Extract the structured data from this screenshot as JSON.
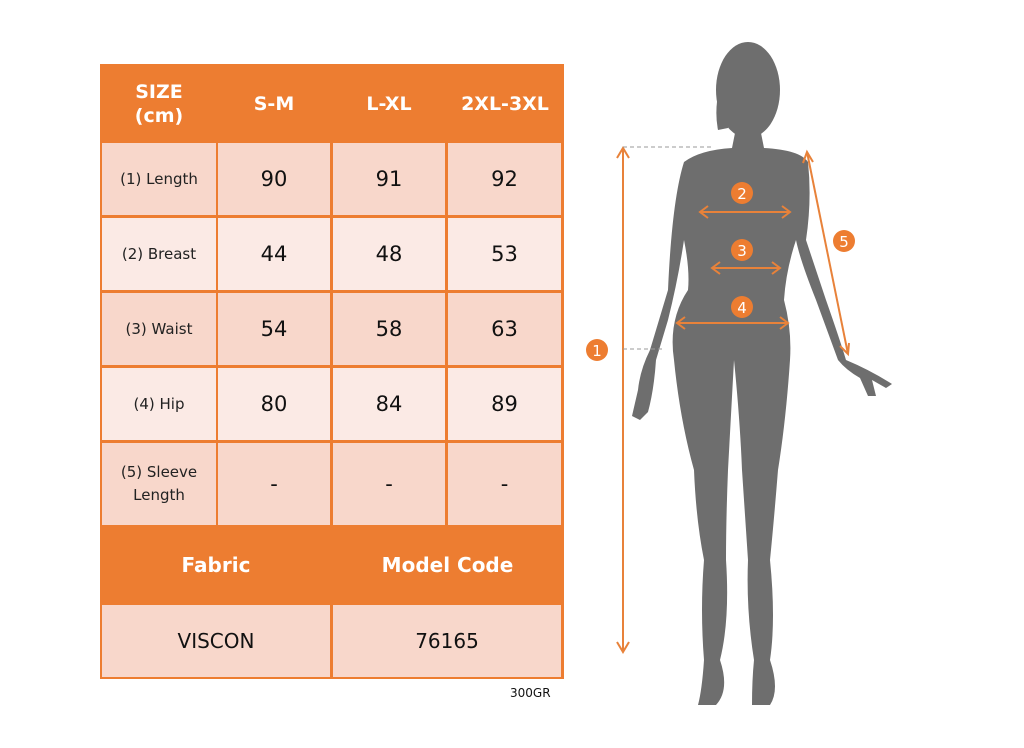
{
  "table": {
    "header": [
      "SIZE\n(cm)",
      "S-M",
      "L-XL",
      "2XL-3XL"
    ],
    "header_label_line1": "SIZE",
    "header_label_line2": "(cm)",
    "rows": [
      {
        "label": "(1) Length",
        "values": [
          "90",
          "91",
          "92"
        ]
      },
      {
        "label": "(2) Breast",
        "values": [
          "44",
          "48",
          "53"
        ]
      },
      {
        "label": "(3) Waist",
        "values": [
          "54",
          "58",
          "63"
        ]
      },
      {
        "label": "(4) Hip",
        "values": [
          "80",
          "84",
          "89"
        ]
      },
      {
        "label_line1": "(5) Sleeve",
        "label_line2": "Length",
        "values": [
          "-",
          "-",
          "-"
        ]
      }
    ],
    "footer_headers": [
      "Fabric",
      "Model Code"
    ],
    "footer_values": [
      "VISCON",
      "76165"
    ]
  },
  "weight_note": "300GR",
  "figure": {
    "markers": [
      "1",
      "2",
      "3",
      "4",
      "5"
    ],
    "icon": "female-silhouette-icon"
  },
  "colors": {
    "accent": "#ED7D31",
    "cell_dark": "#F8D7CB",
    "cell_light": "#FBEAE5",
    "silhouette": "#6E6E6E"
  }
}
